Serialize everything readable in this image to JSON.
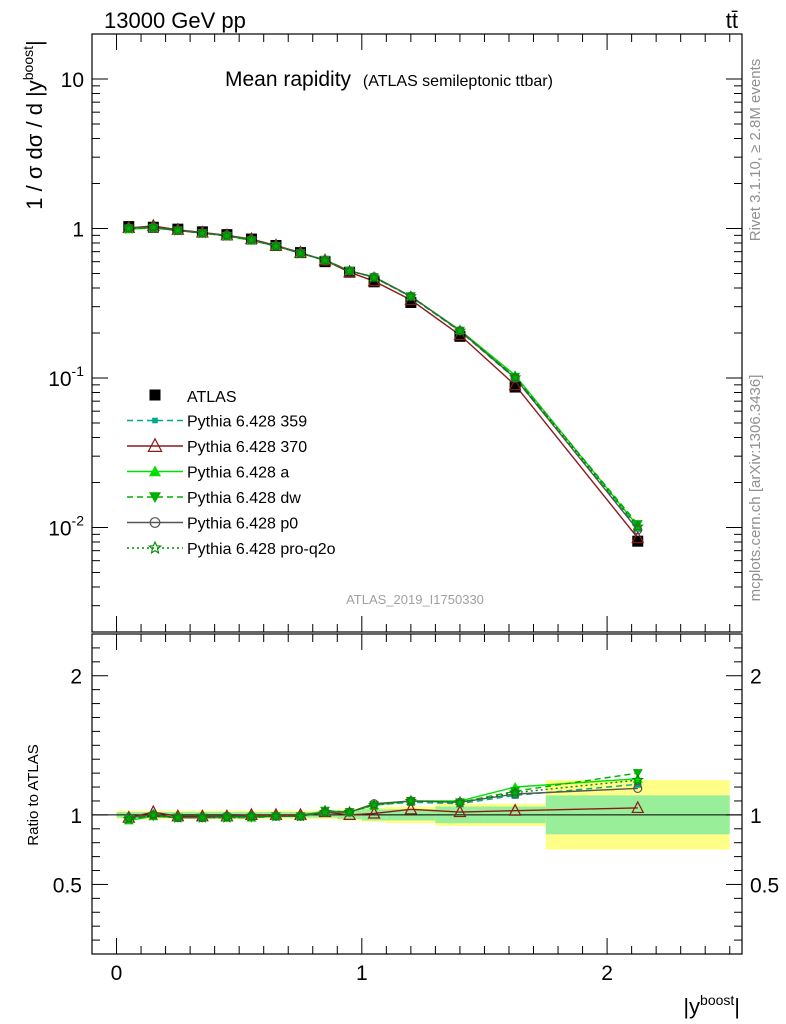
{
  "header": {
    "energy": "13000 GeV pp",
    "process": "tt̄"
  },
  "side": {
    "rivet": "Rivet 3.1.10, ≥ 2.8M events",
    "mcplots": "mcplots.cern.ch [arXiv:1306.3436]"
  },
  "chart_data": {
    "type": "line",
    "title": "Mean rapidity",
    "subtitle": "(ATLAS semileptonic ttbar)",
    "analysis_id": "ATLAS_2019_I1750330",
    "ylabel": "1 / σ dσ / d |y^boost|",
    "ratio_ylabel": "Ratio to ATLAS",
    "xlabel": "|y^boost|",
    "xlim": [
      -0.1,
      2.55
    ],
    "ylim_main": [
      0.002,
      20
    ],
    "y_scale_main": "log",
    "ylim_ratio": [
      0.0,
      2.3
    ],
    "x_ticks": [
      "0",
      "1",
      "2"
    ],
    "y_ticks_main": [
      "10",
      "1",
      "10^-1",
      "10^-2"
    ],
    "y_ticks_ratio": [
      "0.5",
      "1",
      "2"
    ],
    "legend_position": "center-left",
    "bin_edges": [
      0.0,
      0.1,
      0.2,
      0.3,
      0.4,
      0.5,
      0.6,
      0.7,
      0.8,
      0.9,
      1.0,
      1.1,
      1.3,
      1.5,
      1.75,
      2.5
    ],
    "x": [
      0.05,
      0.15,
      0.25,
      0.35,
      0.45,
      0.55,
      0.65,
      0.75,
      0.85,
      0.95,
      1.05,
      1.2,
      1.4,
      1.625,
      2.125
    ],
    "data": {
      "name": "ATLAS",
      "values": [
        1.03,
        1.02,
        0.99,
        0.95,
        0.91,
        0.85,
        0.77,
        0.69,
        0.6,
        0.51,
        0.44,
        0.32,
        0.19,
        0.087,
        0.0081
      ],
      "band_inner": [
        0.02,
        0.02,
        0.02,
        0.02,
        0.02,
        0.02,
        0.02,
        0.02,
        0.02,
        0.03,
        0.04,
        0.04,
        0.06,
        0.06,
        0.14
      ],
      "band_outer": [
        0.03,
        0.03,
        0.03,
        0.03,
        0.03,
        0.03,
        0.03,
        0.03,
        0.03,
        0.04,
        0.05,
        0.06,
        0.08,
        0.08,
        0.25
      ]
    },
    "series": [
      {
        "name": "Pythia 6.428 359",
        "color": "#00a88a",
        "style": "dashed",
        "marker": "square",
        "ratio": [
          0.97,
          0.99,
          0.98,
          0.98,
          0.99,
          0.99,
          0.99,
          0.99,
          1.02,
          1.02,
          1.07,
          1.09,
          1.08,
          1.14,
          1.22
        ]
      },
      {
        "name": "Pythia 6.428 370",
        "color": "#8b1a1a",
        "style": "solid",
        "marker": "triangle-open",
        "ratio": [
          0.98,
          1.02,
          0.99,
          0.99,
          0.99,
          1.0,
          1.0,
          1.0,
          1.02,
          1.0,
          1.01,
          1.04,
          1.02,
          1.03,
          1.05
        ]
      },
      {
        "name": "Pythia 6.428 a",
        "color": "#00e000",
        "style": "solid",
        "marker": "triangle",
        "ratio": [
          0.96,
          0.99,
          0.98,
          0.98,
          0.98,
          0.98,
          0.99,
          0.99,
          1.03,
          1.02,
          1.07,
          1.1,
          1.1,
          1.2,
          1.26
        ]
      },
      {
        "name": "Pythia 6.428 dw",
        "color": "#00b000",
        "style": "dashed",
        "marker": "triangle-down",
        "ratio": [
          0.97,
          0.99,
          0.98,
          0.98,
          0.98,
          0.98,
          0.99,
          0.99,
          1.03,
          1.02,
          1.07,
          1.1,
          1.09,
          1.17,
          1.3
        ]
      },
      {
        "name": "Pythia 6.428 p0",
        "color": "#555555",
        "style": "solid",
        "marker": "circle-open",
        "ratio": [
          0.98,
          1.0,
          0.98,
          0.98,
          0.99,
          0.99,
          0.99,
          0.99,
          1.02,
          1.02,
          1.08,
          1.1,
          1.09,
          1.15,
          1.19
        ]
      },
      {
        "name": "Pythia 6.428 pro-q2o",
        "color": "#008800",
        "style": "dotted",
        "marker": "star-open",
        "ratio": [
          0.97,
          1.0,
          0.98,
          0.98,
          0.98,
          0.99,
          0.99,
          0.99,
          1.02,
          1.02,
          1.07,
          1.1,
          1.09,
          1.16,
          1.25
        ]
      }
    ]
  }
}
